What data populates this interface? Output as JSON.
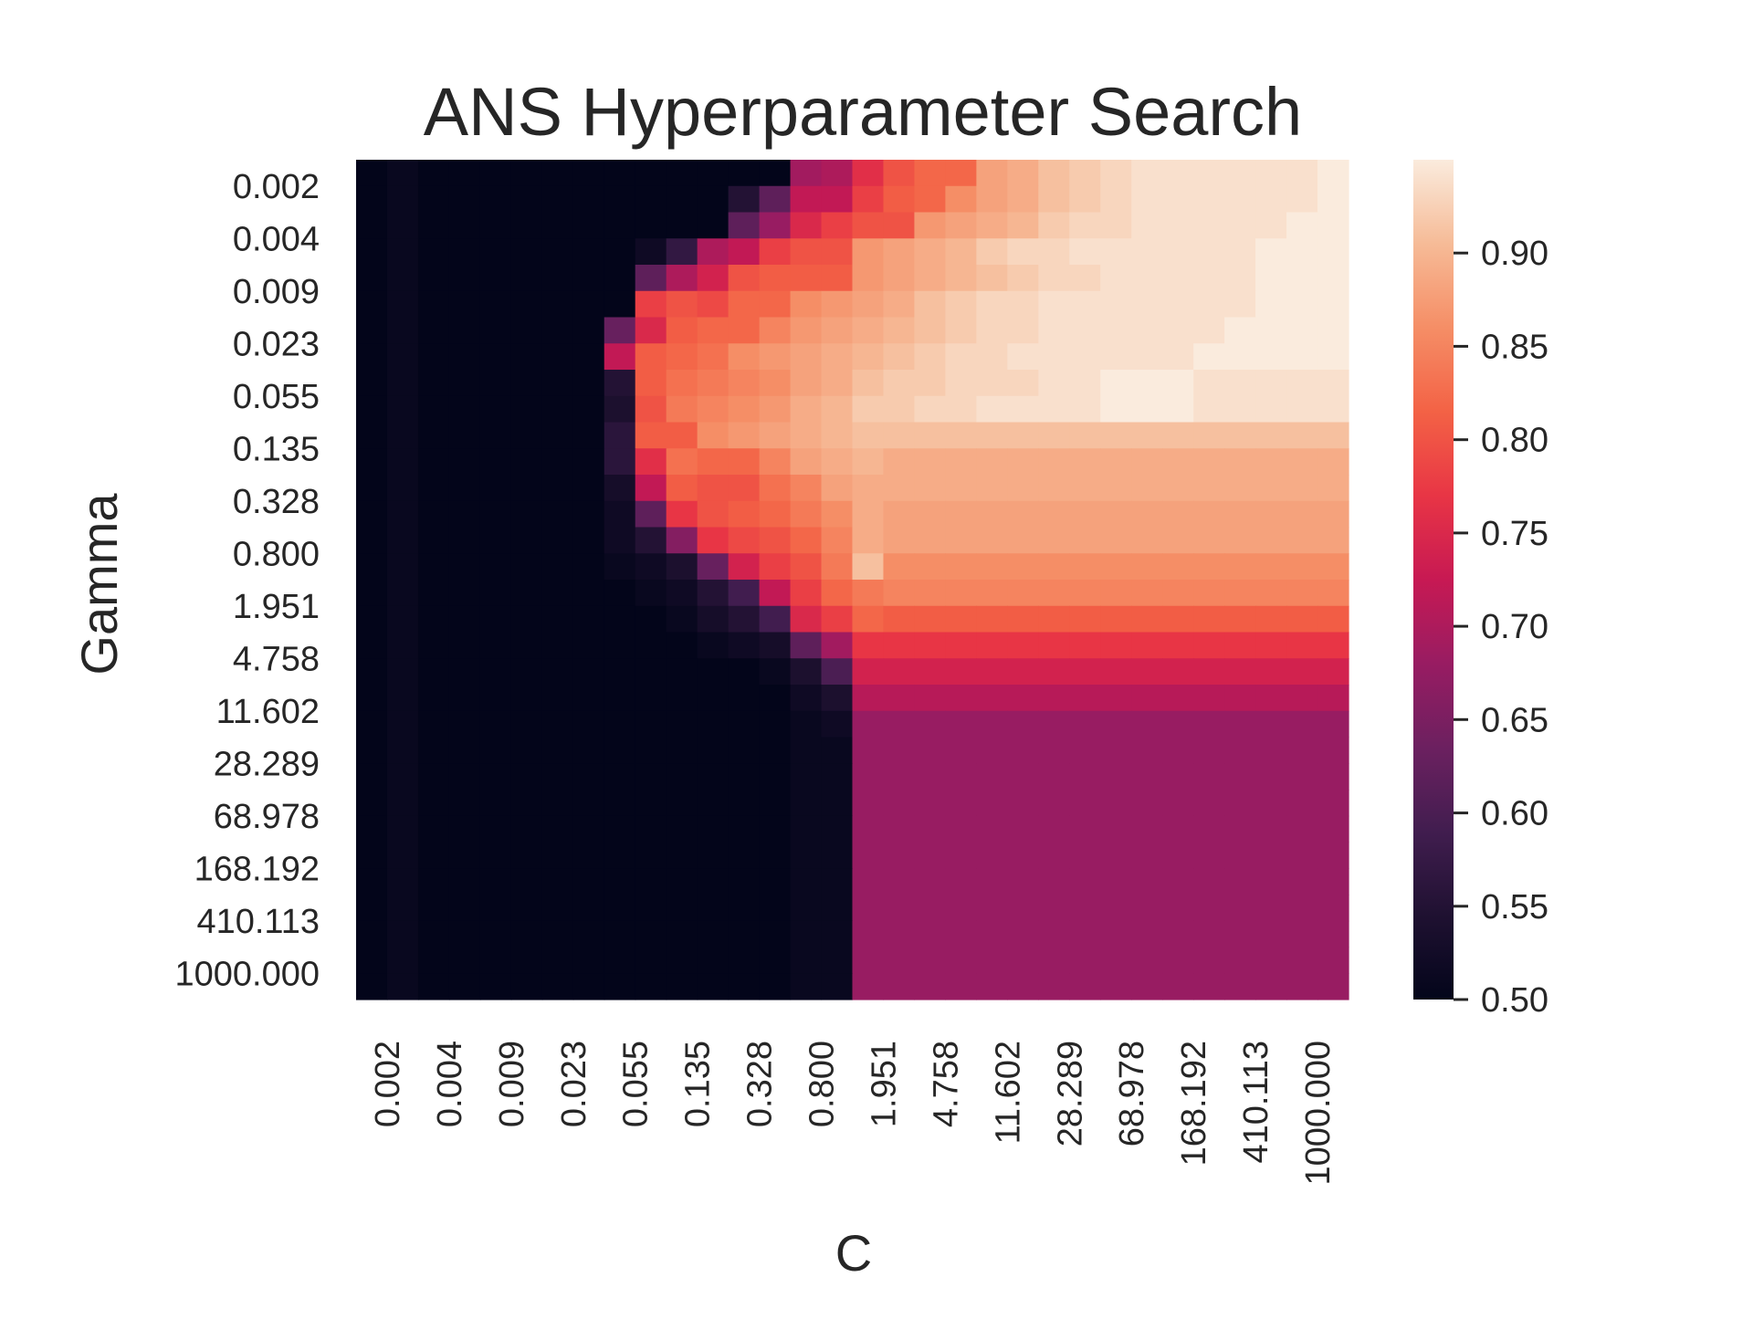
{
  "chart_data": {
    "type": "heatmap",
    "title": "ANS Hyperparameter Search",
    "xlabel": "C",
    "ylabel": "Gamma",
    "colormap": "rocket",
    "x_tick_labels": [
      "0.002",
      "0.004",
      "0.009",
      "0.023",
      "0.055",
      "0.135",
      "0.328",
      "0.800",
      "1.951",
      "4.758",
      "11.602",
      "28.289",
      "68.978",
      "168.192",
      "410.113",
      "1000.000"
    ],
    "y_tick_labels": [
      "0.002",
      "0.004",
      "0.009",
      "0.023",
      "0.055",
      "0.135",
      "0.328",
      "0.800",
      "1.951",
      "4.758",
      "11.602",
      "28.289",
      "68.978",
      "168.192",
      "410.113",
      "1000.000"
    ],
    "colorbar": {
      "range": [
        0.5,
        0.95
      ],
      "ticks": [
        0.5,
        0.55,
        0.6,
        0.65,
        0.7,
        0.75,
        0.8,
        0.85,
        0.9
      ],
      "tick_labels": [
        "0.50",
        "0.55",
        "0.60",
        "0.65",
        "0.70",
        "0.75",
        "0.80",
        "0.85",
        "0.90"
      ]
    },
    "values": [
      [
        0.5,
        0.51,
        0.5,
        0.5,
        0.5,
        0.5,
        0.5,
        0.5,
        0.5,
        0.5,
        0.5,
        0.5,
        0.5,
        0.5,
        0.69,
        0.7,
        0.76,
        0.8,
        0.82,
        0.82,
        0.88,
        0.89,
        0.91,
        0.92,
        0.93,
        0.94,
        0.94,
        0.94,
        0.94,
        0.94,
        0.94,
        0.95
      ],
      [
        0.5,
        0.51,
        0.5,
        0.5,
        0.5,
        0.5,
        0.5,
        0.5,
        0.5,
        0.5,
        0.5,
        0.5,
        0.55,
        0.62,
        0.72,
        0.72,
        0.78,
        0.81,
        0.82,
        0.86,
        0.88,
        0.89,
        0.91,
        0.92,
        0.93,
        0.94,
        0.94,
        0.94,
        0.94,
        0.94,
        0.94,
        0.95
      ],
      [
        0.5,
        0.51,
        0.5,
        0.5,
        0.5,
        0.5,
        0.5,
        0.5,
        0.5,
        0.5,
        0.5,
        0.5,
        0.62,
        0.68,
        0.75,
        0.78,
        0.8,
        0.8,
        0.87,
        0.88,
        0.89,
        0.9,
        0.92,
        0.93,
        0.93,
        0.94,
        0.94,
        0.94,
        0.94,
        0.94,
        0.95,
        0.95
      ],
      [
        0.5,
        0.51,
        0.5,
        0.5,
        0.5,
        0.5,
        0.5,
        0.5,
        0.5,
        0.52,
        0.57,
        0.7,
        0.72,
        0.78,
        0.8,
        0.8,
        0.87,
        0.88,
        0.89,
        0.9,
        0.92,
        0.93,
        0.93,
        0.94,
        0.94,
        0.94,
        0.94,
        0.94,
        0.94,
        0.95,
        0.95,
        0.95
      ],
      [
        0.5,
        0.51,
        0.5,
        0.5,
        0.5,
        0.5,
        0.5,
        0.5,
        0.5,
        0.62,
        0.7,
        0.74,
        0.8,
        0.81,
        0.81,
        0.81,
        0.87,
        0.88,
        0.89,
        0.9,
        0.91,
        0.92,
        0.93,
        0.93,
        0.94,
        0.94,
        0.94,
        0.94,
        0.94,
        0.95,
        0.95,
        0.95
      ],
      [
        0.5,
        0.51,
        0.5,
        0.5,
        0.5,
        0.5,
        0.5,
        0.5,
        0.5,
        0.78,
        0.8,
        0.79,
        0.82,
        0.82,
        0.86,
        0.87,
        0.88,
        0.89,
        0.91,
        0.92,
        0.93,
        0.93,
        0.94,
        0.94,
        0.94,
        0.94,
        0.94,
        0.94,
        0.94,
        0.95,
        0.95,
        0.95
      ],
      [
        0.5,
        0.51,
        0.5,
        0.5,
        0.5,
        0.5,
        0.5,
        0.5,
        0.63,
        0.75,
        0.81,
        0.82,
        0.82,
        0.85,
        0.87,
        0.88,
        0.89,
        0.9,
        0.91,
        0.92,
        0.93,
        0.93,
        0.94,
        0.94,
        0.94,
        0.94,
        0.94,
        0.94,
        0.95,
        0.95,
        0.95,
        0.95
      ],
      [
        0.5,
        0.51,
        0.5,
        0.5,
        0.5,
        0.5,
        0.5,
        0.5,
        0.72,
        0.81,
        0.82,
        0.83,
        0.86,
        0.87,
        0.88,
        0.89,
        0.9,
        0.91,
        0.92,
        0.93,
        0.93,
        0.94,
        0.94,
        0.94,
        0.94,
        0.94,
        0.94,
        0.95,
        0.95,
        0.95,
        0.95,
        0.95
      ],
      [
        0.5,
        0.51,
        0.5,
        0.5,
        0.5,
        0.5,
        0.5,
        0.5,
        0.55,
        0.81,
        0.83,
        0.84,
        0.85,
        0.86,
        0.88,
        0.89,
        0.91,
        0.92,
        0.92,
        0.93,
        0.93,
        0.93,
        0.94,
        0.94,
        0.95,
        0.95,
        0.95,
        0.94,
        0.94,
        0.94,
        0.94,
        0.94
      ],
      [
        0.5,
        0.51,
        0.5,
        0.5,
        0.5,
        0.5,
        0.5,
        0.5,
        0.54,
        0.8,
        0.84,
        0.85,
        0.86,
        0.87,
        0.89,
        0.9,
        0.92,
        0.92,
        0.93,
        0.93,
        0.94,
        0.94,
        0.94,
        0.94,
        0.95,
        0.95,
        0.95,
        0.94,
        0.94,
        0.94,
        0.94,
        0.94
      ],
      [
        0.5,
        0.51,
        0.5,
        0.5,
        0.5,
        0.5,
        0.5,
        0.5,
        0.56,
        0.81,
        0.81,
        0.86,
        0.87,
        0.88,
        0.89,
        0.9,
        0.91,
        0.91,
        0.91,
        0.91,
        0.91,
        0.91,
        0.91,
        0.91,
        0.91,
        0.91,
        0.91,
        0.91,
        0.91,
        0.91,
        0.91,
        0.91
      ],
      [
        0.5,
        0.51,
        0.5,
        0.5,
        0.5,
        0.5,
        0.5,
        0.5,
        0.56,
        0.76,
        0.83,
        0.82,
        0.82,
        0.85,
        0.88,
        0.89,
        0.9,
        0.89,
        0.89,
        0.89,
        0.89,
        0.89,
        0.89,
        0.89,
        0.89,
        0.89,
        0.89,
        0.89,
        0.89,
        0.89,
        0.89,
        0.89
      ],
      [
        0.5,
        0.51,
        0.5,
        0.5,
        0.5,
        0.5,
        0.5,
        0.5,
        0.53,
        0.72,
        0.81,
        0.8,
        0.8,
        0.83,
        0.85,
        0.88,
        0.89,
        0.89,
        0.89,
        0.89,
        0.89,
        0.89,
        0.89,
        0.89,
        0.89,
        0.89,
        0.89,
        0.89,
        0.89,
        0.89,
        0.89,
        0.89
      ],
      [
        0.5,
        0.51,
        0.5,
        0.5,
        0.5,
        0.5,
        0.5,
        0.5,
        0.52,
        0.62,
        0.77,
        0.8,
        0.81,
        0.82,
        0.84,
        0.86,
        0.89,
        0.88,
        0.88,
        0.88,
        0.88,
        0.88,
        0.88,
        0.88,
        0.88,
        0.88,
        0.88,
        0.88,
        0.88,
        0.88,
        0.88,
        0.88
      ],
      [
        0.5,
        0.51,
        0.5,
        0.5,
        0.5,
        0.5,
        0.5,
        0.5,
        0.52,
        0.55,
        0.66,
        0.77,
        0.79,
        0.8,
        0.82,
        0.85,
        0.89,
        0.88,
        0.88,
        0.88,
        0.88,
        0.88,
        0.88,
        0.88,
        0.88,
        0.88,
        0.88,
        0.88,
        0.88,
        0.88,
        0.88,
        0.88
      ],
      [
        0.5,
        0.51,
        0.5,
        0.5,
        0.5,
        0.5,
        0.5,
        0.5,
        0.51,
        0.52,
        0.54,
        0.63,
        0.74,
        0.78,
        0.8,
        0.84,
        0.91,
        0.86,
        0.86,
        0.86,
        0.86,
        0.86,
        0.86,
        0.86,
        0.86,
        0.86,
        0.86,
        0.86,
        0.86,
        0.86,
        0.86,
        0.86
      ],
      [
        0.5,
        0.51,
        0.5,
        0.5,
        0.5,
        0.5,
        0.5,
        0.5,
        0.5,
        0.51,
        0.52,
        0.55,
        0.59,
        0.72,
        0.78,
        0.82,
        0.84,
        0.85,
        0.85,
        0.85,
        0.85,
        0.85,
        0.85,
        0.85,
        0.85,
        0.85,
        0.85,
        0.85,
        0.85,
        0.85,
        0.85,
        0.85
      ],
      [
        0.5,
        0.51,
        0.5,
        0.5,
        0.5,
        0.5,
        0.5,
        0.5,
        0.5,
        0.5,
        0.51,
        0.53,
        0.55,
        0.59,
        0.75,
        0.78,
        0.82,
        0.81,
        0.81,
        0.81,
        0.81,
        0.81,
        0.81,
        0.81,
        0.81,
        0.81,
        0.81,
        0.81,
        0.81,
        0.81,
        0.81,
        0.81
      ],
      [
        0.5,
        0.51,
        0.5,
        0.5,
        0.5,
        0.5,
        0.5,
        0.5,
        0.5,
        0.5,
        0.5,
        0.51,
        0.52,
        0.53,
        0.62,
        0.69,
        0.77,
        0.77,
        0.77,
        0.77,
        0.77,
        0.77,
        0.77,
        0.77,
        0.77,
        0.77,
        0.77,
        0.77,
        0.77,
        0.77,
        0.77,
        0.77
      ],
      [
        0.5,
        0.51,
        0.5,
        0.5,
        0.5,
        0.5,
        0.5,
        0.5,
        0.5,
        0.5,
        0.5,
        0.5,
        0.5,
        0.51,
        0.54,
        0.6,
        0.74,
        0.74,
        0.74,
        0.74,
        0.74,
        0.74,
        0.74,
        0.74,
        0.74,
        0.74,
        0.74,
        0.74,
        0.74,
        0.74,
        0.74,
        0.74
      ],
      [
        0.5,
        0.51,
        0.5,
        0.5,
        0.5,
        0.5,
        0.5,
        0.5,
        0.5,
        0.5,
        0.5,
        0.5,
        0.5,
        0.5,
        0.52,
        0.54,
        0.71,
        0.71,
        0.71,
        0.71,
        0.71,
        0.71,
        0.71,
        0.71,
        0.71,
        0.71,
        0.71,
        0.71,
        0.71,
        0.71,
        0.71,
        0.71
      ],
      [
        0.5,
        0.51,
        0.5,
        0.5,
        0.5,
        0.5,
        0.5,
        0.5,
        0.5,
        0.5,
        0.5,
        0.5,
        0.5,
        0.5,
        0.51,
        0.52,
        0.68,
        0.68,
        0.68,
        0.68,
        0.68,
        0.68,
        0.68,
        0.68,
        0.68,
        0.68,
        0.68,
        0.68,
        0.68,
        0.68,
        0.68,
        0.68
      ],
      [
        0.5,
        0.51,
        0.5,
        0.5,
        0.5,
        0.5,
        0.5,
        0.5,
        0.5,
        0.5,
        0.5,
        0.5,
        0.5,
        0.5,
        0.51,
        0.51,
        0.68,
        0.68,
        0.68,
        0.68,
        0.68,
        0.68,
        0.68,
        0.68,
        0.68,
        0.68,
        0.68,
        0.68,
        0.68,
        0.68,
        0.68,
        0.68
      ],
      [
        0.5,
        0.51,
        0.5,
        0.5,
        0.5,
        0.5,
        0.5,
        0.5,
        0.5,
        0.5,
        0.5,
        0.5,
        0.5,
        0.5,
        0.51,
        0.51,
        0.68,
        0.68,
        0.68,
        0.68,
        0.68,
        0.68,
        0.68,
        0.68,
        0.68,
        0.68,
        0.68,
        0.68,
        0.68,
        0.68,
        0.68,
        0.68
      ],
      [
        0.5,
        0.51,
        0.5,
        0.5,
        0.5,
        0.5,
        0.5,
        0.5,
        0.5,
        0.5,
        0.5,
        0.5,
        0.5,
        0.5,
        0.51,
        0.51,
        0.68,
        0.68,
        0.68,
        0.68,
        0.68,
        0.68,
        0.68,
        0.68,
        0.68,
        0.68,
        0.68,
        0.68,
        0.68,
        0.68,
        0.68,
        0.68
      ],
      [
        0.5,
        0.51,
        0.5,
        0.5,
        0.5,
        0.5,
        0.5,
        0.5,
        0.5,
        0.5,
        0.5,
        0.5,
        0.5,
        0.5,
        0.51,
        0.51,
        0.68,
        0.68,
        0.68,
        0.68,
        0.68,
        0.68,
        0.68,
        0.68,
        0.68,
        0.68,
        0.68,
        0.68,
        0.68,
        0.68,
        0.68,
        0.68
      ],
      [
        0.5,
        0.51,
        0.5,
        0.5,
        0.5,
        0.5,
        0.5,
        0.5,
        0.5,
        0.5,
        0.5,
        0.5,
        0.5,
        0.5,
        0.51,
        0.51,
        0.68,
        0.68,
        0.68,
        0.68,
        0.68,
        0.68,
        0.68,
        0.68,
        0.68,
        0.68,
        0.68,
        0.68,
        0.68,
        0.68,
        0.68,
        0.68
      ],
      [
        0.5,
        0.51,
        0.5,
        0.5,
        0.5,
        0.5,
        0.5,
        0.5,
        0.5,
        0.5,
        0.5,
        0.5,
        0.5,
        0.5,
        0.51,
        0.51,
        0.68,
        0.68,
        0.68,
        0.68,
        0.68,
        0.68,
        0.68,
        0.68,
        0.68,
        0.68,
        0.68,
        0.68,
        0.68,
        0.68,
        0.68,
        0.68
      ],
      [
        0.5,
        0.51,
        0.5,
        0.5,
        0.5,
        0.5,
        0.5,
        0.5,
        0.5,
        0.5,
        0.5,
        0.5,
        0.5,
        0.5,
        0.51,
        0.51,
        0.68,
        0.68,
        0.68,
        0.68,
        0.68,
        0.68,
        0.68,
        0.68,
        0.68,
        0.68,
        0.68,
        0.68,
        0.68,
        0.68,
        0.68,
        0.68
      ],
      [
        0.5,
        0.51,
        0.5,
        0.5,
        0.5,
        0.5,
        0.5,
        0.5,
        0.5,
        0.5,
        0.5,
        0.5,
        0.5,
        0.5,
        0.51,
        0.51,
        0.68,
        0.68,
        0.68,
        0.68,
        0.68,
        0.68,
        0.68,
        0.68,
        0.68,
        0.68,
        0.68,
        0.68,
        0.68,
        0.68,
        0.68,
        0.68
      ],
      [
        0.5,
        0.51,
        0.5,
        0.5,
        0.5,
        0.5,
        0.5,
        0.5,
        0.5,
        0.5,
        0.5,
        0.5,
        0.5,
        0.5,
        0.51,
        0.51,
        0.68,
        0.68,
        0.68,
        0.68,
        0.68,
        0.68,
        0.68,
        0.68,
        0.68,
        0.68,
        0.68,
        0.68,
        0.68,
        0.68,
        0.68,
        0.68
      ],
      [
        0.5,
        0.51,
        0.5,
        0.5,
        0.5,
        0.5,
        0.5,
        0.5,
        0.5,
        0.5,
        0.5,
        0.5,
        0.5,
        0.5,
        0.51,
        0.51,
        0.68,
        0.68,
        0.68,
        0.68,
        0.68,
        0.68,
        0.68,
        0.68,
        0.68,
        0.68,
        0.68,
        0.68,
        0.68,
        0.68,
        0.68,
        0.68
      ]
    ]
  }
}
